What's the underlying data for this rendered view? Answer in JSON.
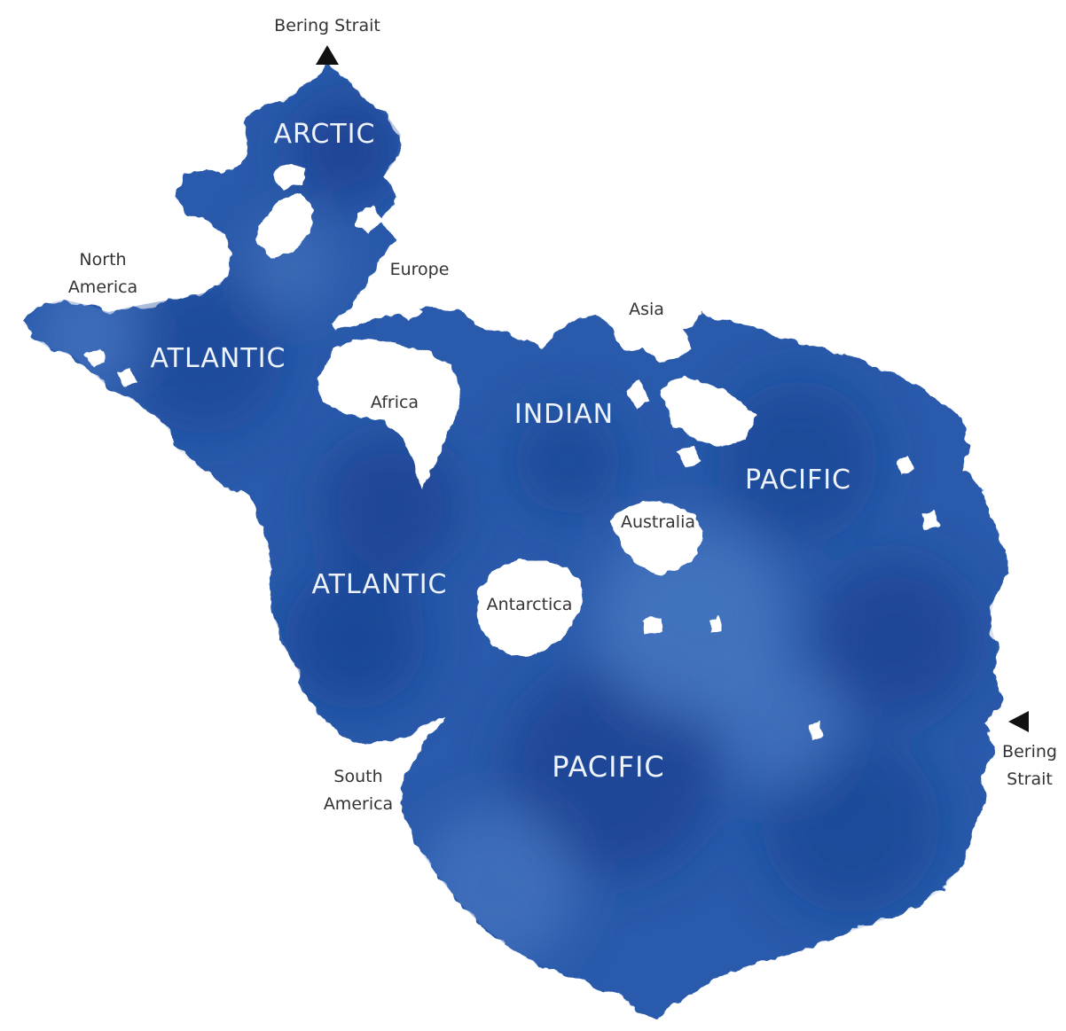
{
  "colors": {
    "ocean_light": "#4d7cc4",
    "ocean_mid": "#2b5aab",
    "ocean_dark": "#173f8f",
    "land": "#ffffff",
    "ocean_label": "#eef3fb",
    "land_label": "#333333",
    "marker": "#111111"
  },
  "oceans": {
    "arctic": "ARCTIC",
    "atlantic_north": "ATLANTIC",
    "atlantic_south": "ATLANTIC",
    "indian": "INDIAN",
    "pacific_east": "PACIFIC",
    "pacific_south": "PACIFIC"
  },
  "landmasses": {
    "north_america_line1": "North",
    "north_america_line2": "America",
    "europe": "Europe",
    "asia": "Asia",
    "africa": "Africa",
    "australia": "Australia",
    "antarctica": "Antarctica",
    "south_america_line1": "South",
    "south_america_line2": "America"
  },
  "markers": {
    "bering_top": "Bering Strait",
    "bering_right_line1": "Bering",
    "bering_right_line2": "Strait"
  },
  "icons": {
    "marker_top": "triangle-up-icon",
    "marker_right": "triangle-left-icon"
  }
}
